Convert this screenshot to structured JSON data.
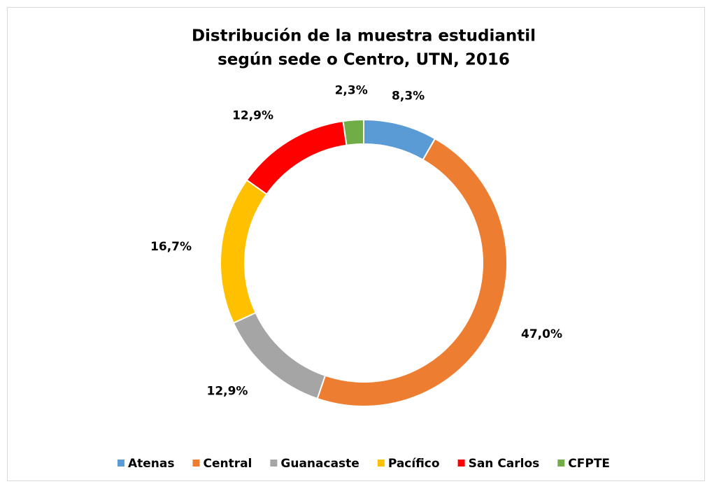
{
  "chart_data": {
    "type": "donut",
    "title": [
      "Distribución de la muestra estudiantil",
      "según sede o Centro, UTN, 2016"
    ],
    "categories": [
      "Atenas",
      "Central",
      "Guanacaste",
      "Pacífico",
      "San Carlos",
      "CFPTE"
    ],
    "values": [
      8.3,
      47.0,
      12.9,
      16.7,
      12.9,
      2.3
    ],
    "value_labels": [
      "8,3%",
      "47,0%",
      "12,9%",
      "16,7%",
      "12,9%",
      "2,3%"
    ],
    "colors": [
      "#5b9bd5",
      "#ed7d31",
      "#a5a5a5",
      "#ffc000",
      "#ff0000",
      "#70ad47"
    ],
    "legend": "bottom"
  }
}
